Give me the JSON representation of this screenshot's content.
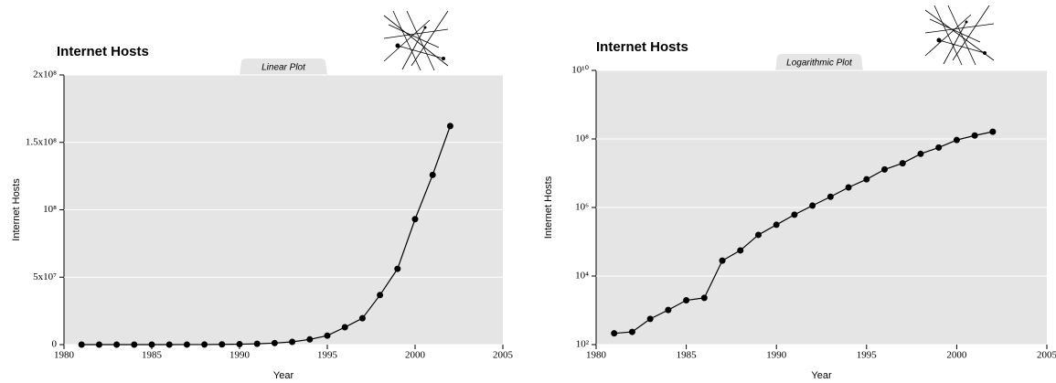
{
  "chart_data": [
    {
      "type": "line",
      "title": "Internet Hosts",
      "subtitle": "Linear Plot",
      "xlabel": "Year",
      "ylabel": "Internet Hosts",
      "x": [
        1981,
        1982,
        1983,
        1984,
        1985,
        1986,
        1987,
        1988,
        1989,
        1990,
        1991,
        1992,
        1993,
        1994,
        1995,
        1996,
        1997,
        1998,
        1999,
        2000,
        2001,
        2002
      ],
      "values": [
        213,
        235,
        562,
        1024,
        1961,
        2308,
        28174,
        56000,
        159000,
        313000,
        617000,
        1136000,
        2056000,
        3864000,
        6642000,
        12881000,
        19540000,
        36739000,
        56218000,
        93047785,
        125888197,
        162128493
      ],
      "color": "#000000",
      "xlim": [
        1980,
        2005
      ],
      "xticks": [
        1980,
        1985,
        1990,
        1995,
        2000,
        2005
      ],
      "ylim": [
        0,
        200000000
      ],
      "yticks": [
        0,
        {
          "value": 50000000,
          "label": "5x10⁷"
        },
        {
          "value": 100000000,
          "label": "10⁸"
        },
        {
          "value": 150000000,
          "label": "1.5x10⁸"
        },
        {
          "value": 200000000,
          "label": "2x10⁸"
        }
      ],
      "log_scale": false,
      "grid": true
    },
    {
      "type": "line",
      "title": "Internet Hosts",
      "subtitle": "Logarithmic Plot",
      "xlabel": "Year",
      "ylabel": "Internet Hosts",
      "x": [
        1981,
        1982,
        1983,
        1984,
        1985,
        1986,
        1987,
        1988,
        1989,
        1990,
        1991,
        1992,
        1993,
        1994,
        1995,
        1996,
        1997,
        1998,
        1999,
        2000,
        2001,
        2002
      ],
      "values": [
        213,
        235,
        562,
        1024,
        1961,
        2308,
        28174,
        56000,
        159000,
        313000,
        617000,
        1136000,
        2056000,
        3864000,
        6642000,
        12881000,
        19540000,
        36739000,
        56218000,
        93047785,
        125888197,
        162128493
      ],
      "color": "#000000",
      "xlim": [
        1980,
        2005
      ],
      "xticks": [
        1980,
        1985,
        1990,
        1995,
        2000,
        2005
      ],
      "ylim": [
        100,
        10000000000
      ],
      "yticks": [
        {
          "value": 100,
          "label": "10²"
        },
        {
          "value": 10000,
          "label": "10⁴"
        },
        {
          "value": 1000000,
          "label": "10⁶"
        },
        {
          "value": 100000000,
          "label": "10⁸"
        },
        {
          "value": 10000000000,
          "label": "10¹⁰"
        }
      ],
      "log_scale": true,
      "grid": true
    }
  ]
}
